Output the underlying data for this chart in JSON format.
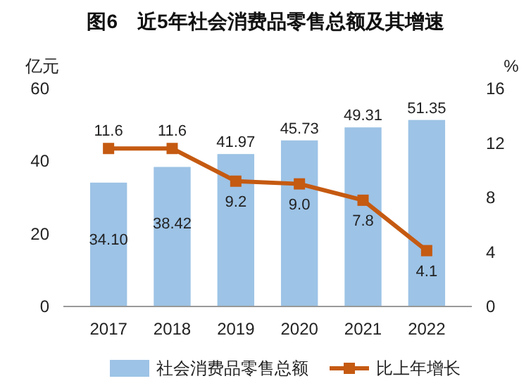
{
  "chart_data": {
    "type": "bar",
    "title": "图6　近5年社会消费品零售总额及其增速",
    "ylabel": "亿元",
    "y2label": "%",
    "categories": [
      "2017",
      "2018",
      "2019",
      "2020",
      "2021",
      "2022"
    ],
    "series": [
      {
        "name": "社会消费品零售总额",
        "color": "#9dc3e6",
        "values": [
          34.1,
          38.42,
          41.97,
          45.73,
          49.31,
          51.35
        ],
        "value_labels": [
          "34.10",
          "38.42",
          "41.97",
          "45.73",
          "49.31",
          "51.35"
        ]
      },
      {
        "type": "line",
        "axis": "y2",
        "name": "比上年增长",
        "color": "#c55a11",
        "values": [
          11.6,
          11.6,
          9.2,
          9.0,
          7.8,
          4.1
        ],
        "value_labels": [
          "11.6",
          "11.6",
          "9.2",
          "9.0",
          "7.8",
          "4.1"
        ]
      }
    ],
    "ylim": [
      0,
      60
    ],
    "yticks": [
      0,
      20,
      40,
      60
    ],
    "y2lim": [
      0,
      16
    ],
    "y2ticks": [
      0,
      4,
      8,
      12,
      16
    ],
    "legend": "bottom",
    "marker": "square",
    "line_style": "solid",
    "grid": false
  }
}
